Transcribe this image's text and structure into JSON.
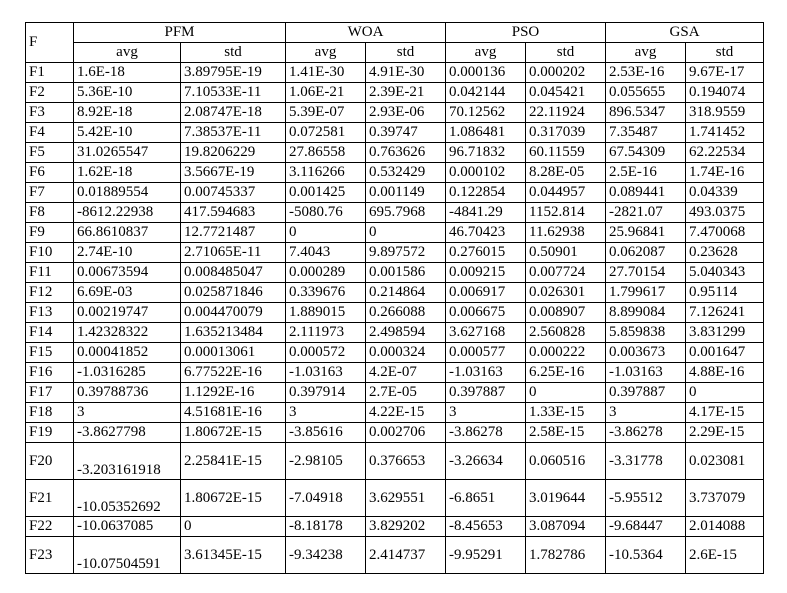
{
  "table": {
    "header": {
      "corner": "F",
      "groups": [
        "PFM",
        "WOA",
        "PSO",
        "GSA"
      ],
      "subheaders": [
        "avg",
        "std",
        "avg",
        "std",
        "avg",
        "std",
        "avg",
        "std"
      ]
    },
    "rows": [
      [
        "F1",
        "1.6E-18",
        "3.89795E-19",
        "1.41E-30",
        "4.91E-30",
        "0.000136",
        "0.000202",
        "2.53E-16",
        "9.67E-17"
      ],
      [
        "F2",
        "5.36E-10",
        "7.10533E-11",
        "1.06E-21",
        "2.39E-21",
        "0.042144",
        "0.045421",
        "0.055655",
        "0.194074"
      ],
      [
        "F3",
        "8.92E-18",
        "2.08747E-18",
        "5.39E-07",
        "2.93E-06",
        "70.12562",
        "22.11924",
        "896.5347",
        "318.9559"
      ],
      [
        "F4",
        "5.42E-10",
        "7.38537E-11",
        "0.072581",
        "0.39747",
        "1.086481",
        "0.317039",
        "7.35487",
        "1.741452"
      ],
      [
        "F5",
        "31.0265547",
        "19.8206229",
        "27.86558",
        "0.763626",
        "96.71832",
        "60.11559",
        "67.54309",
        "62.22534"
      ],
      [
        "F6",
        "1.62E-18",
        "3.5667E-19",
        "3.116266",
        "0.532429",
        "0.000102",
        "8.28E-05",
        "2.5E-16",
        "1.74E-16"
      ],
      [
        "F7",
        "0.01889554",
        "0.00745337",
        "0.001425",
        "0.001149",
        "0.122854",
        "0.044957",
        "0.089441",
        "0.04339"
      ],
      [
        "F8",
        "-8612.22938",
        "417.594683",
        "-5080.76",
        "695.7968",
        "-4841.29",
        "1152.814",
        "-2821.07",
        "493.0375"
      ],
      [
        "F9",
        "66.8610837",
        "12.7721487",
        "0",
        "0",
        "46.70423",
        "11.62938",
        "25.96841",
        "7.470068"
      ],
      [
        "F10",
        "2.74E-10",
        "2.71065E-11",
        "7.4043",
        "9.897572",
        "0.276015",
        "0.50901",
        "0.062087",
        "0.23628"
      ],
      [
        "F11",
        "0.00673594",
        "0.008485047",
        "0.000289",
        "0.001586",
        "0.009215",
        "0.007724",
        "27.70154",
        "5.040343"
      ],
      [
        "F12",
        "6.69E-03",
        "0.025871846",
        "0.339676",
        "0.214864",
        "0.006917",
        "0.026301",
        "1.799617",
        "0.95114"
      ],
      [
        "F13",
        "0.00219747",
        "0.004470079",
        "1.889015",
        "0.266088",
        "0.006675",
        "0.008907",
        "8.899084",
        "7.126241"
      ],
      [
        "F14",
        "1.42328322",
        "1.635213484",
        "2.111973",
        "2.498594",
        "3.627168",
        "2.560828",
        "5.859838",
        "3.831299"
      ],
      [
        "F15",
        "0.00041852",
        "0.00013061",
        "0.000572",
        "0.000324",
        "0.000577",
        "0.000222",
        "0.003673",
        "0.001647"
      ],
      [
        "F16",
        "-1.0316285",
        "6.77522E-16",
        "-1.03163",
        "4.2E-07",
        "-1.03163",
        "6.25E-16",
        "-1.03163",
        "4.88E-16"
      ],
      [
        "F17",
        "0.39788736",
        "1.1292E-16",
        "0.397914",
        "2.7E-05",
        "0.397887",
        "0",
        "0.397887",
        "0"
      ],
      [
        "F18",
        "3",
        "4.51681E-16",
        "3",
        "4.22E-15",
        "3",
        "1.33E-15",
        "3",
        "4.17E-15"
      ],
      [
        "F19",
        "-3.8627798",
        "1.80672E-15",
        "-3.85616",
        "0.002706",
        "-3.86278",
        "2.58E-15",
        "-3.86278",
        "2.29E-15"
      ],
      [
        "F20",
        "-3.203161918",
        "2.25841E-15",
        "-2.98105",
        "0.376653",
        "-3.26634",
        "0.060516",
        "-3.31778",
        "0.023081"
      ],
      [
        "F21",
        "-10.05352692",
        "1.80672E-15",
        "-7.04918",
        "3.629551",
        "-6.8651",
        "3.019644",
        "-5.95512",
        "3.737079"
      ],
      [
        "F22",
        "-10.0637085",
        "0",
        "-8.18178",
        "3.829202",
        "-8.45653",
        "3.087094",
        "-9.68447",
        "2.014088"
      ],
      [
        "F23",
        "-10.07504591",
        "3.61345E-15",
        "-9.34238",
        "2.414737",
        "-9.95291",
        "1.782786",
        "-10.5364",
        "2.6E-15"
      ]
    ]
  }
}
